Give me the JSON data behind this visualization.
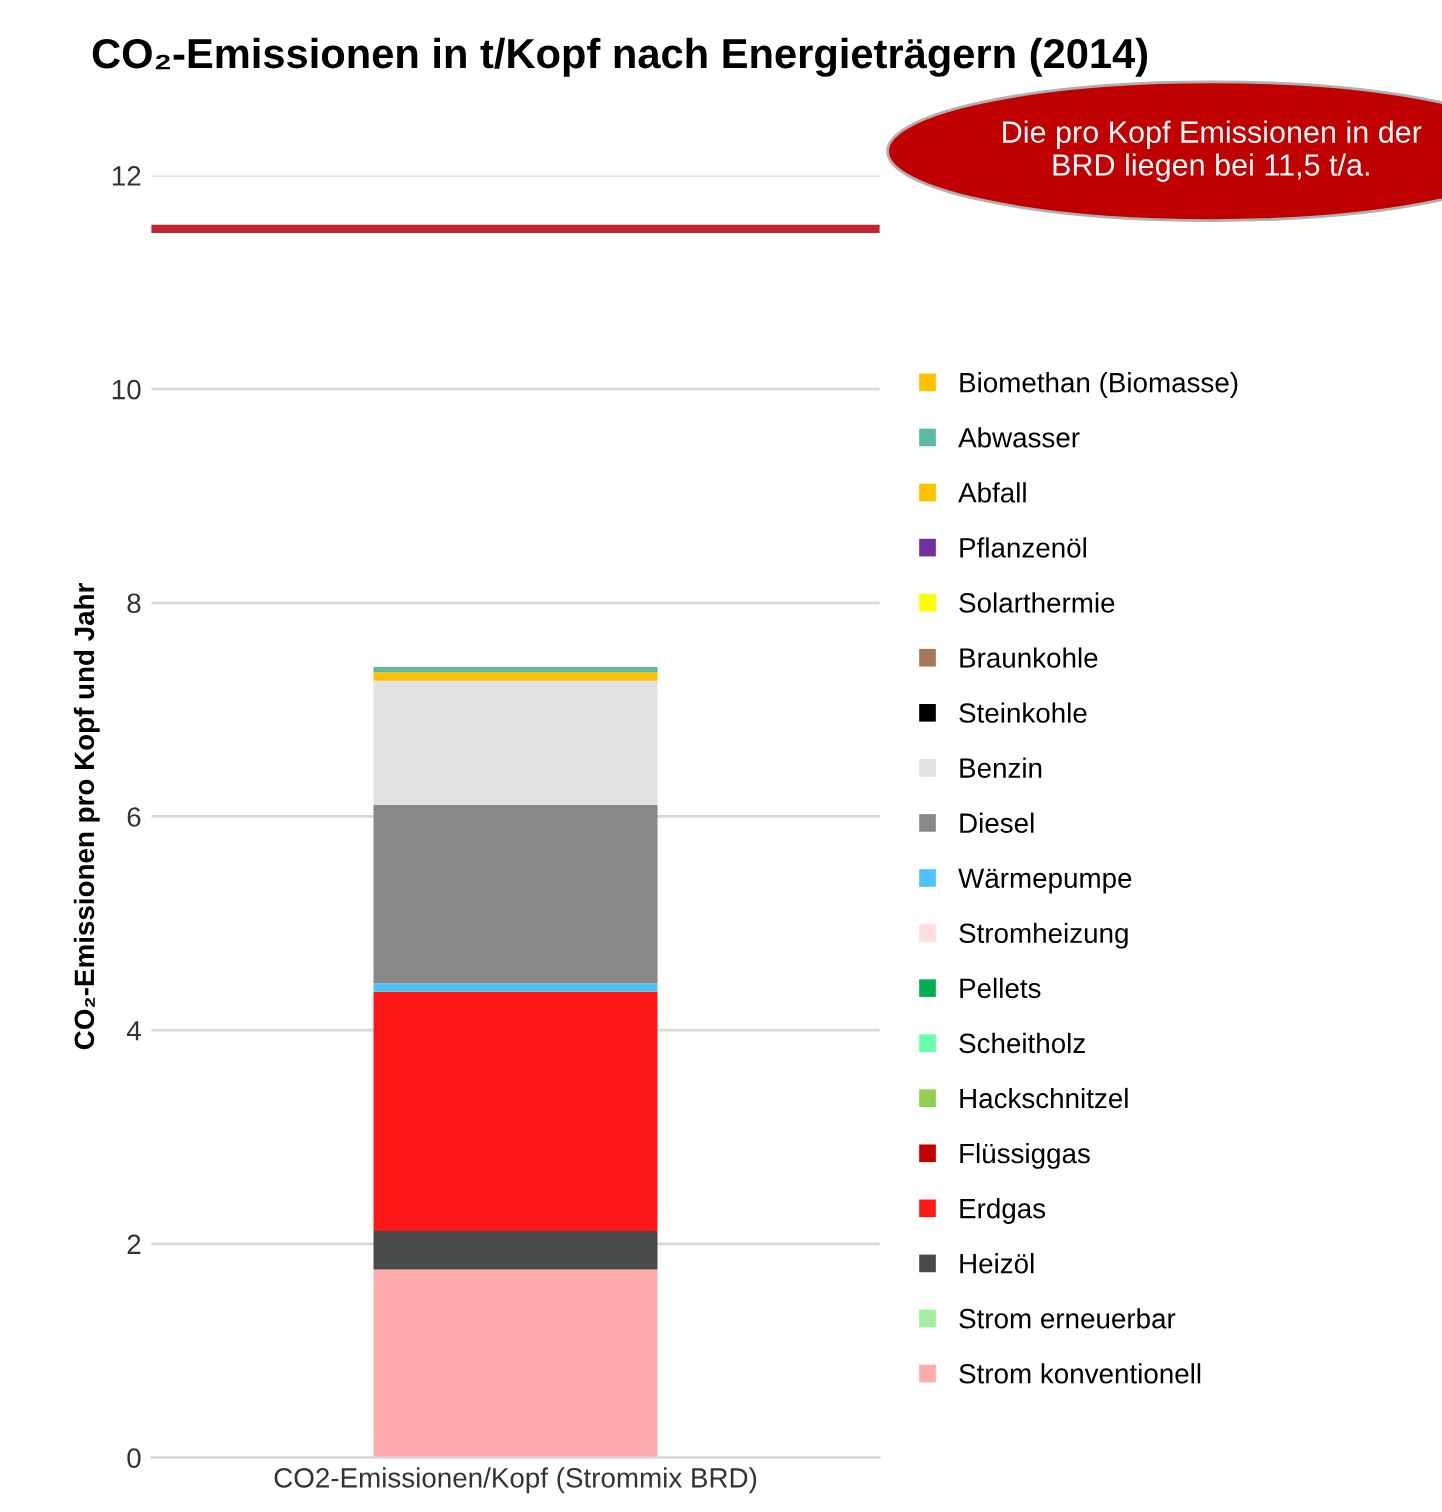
{
  "chart_data": {
    "type": "bar",
    "stacked": true,
    "title": "CO₂-Emissionen in t/Kopf nach Energieträgern (2014)",
    "ylabel": "CO₂-Emissionen pro Kopf und Jahr",
    "categories": [
      "CO2-Emissionen/Kopf (Strommix BRD)"
    ],
    "ylim": [
      0,
      12
    ],
    "yticks": [
      0,
      2,
      4,
      6,
      8,
      10,
      12
    ],
    "grid": "y",
    "legend": "right",
    "ref_lines": [
      {
        "axis": "y",
        "value": 11.5,
        "label": null,
        "color": "#c0262d"
      }
    ],
    "annotations": [
      "Die pro Kopf Emissionen in der BRD liegen bei 11,5 t/a."
    ],
    "series": [
      {
        "name": "Strom konventionell",
        "color": "#ffabae",
        "values": [
          1.76
        ]
      },
      {
        "name": "Strom erneuerbar",
        "color": "#a0f0a0",
        "values": [
          0
        ]
      },
      {
        "name": "Heizöl",
        "color": "#4a4a4a",
        "values": [
          0.36
        ]
      },
      {
        "name": "Erdgas",
        "color": "#ff1818",
        "values": [
          2.24
        ]
      },
      {
        "name": "Flüssiggas",
        "color": "#c00000",
        "values": [
          0
        ]
      },
      {
        "name": "Hackschnitzel",
        "color": "#92d050",
        "values": [
          0
        ]
      },
      {
        "name": "Scheitholz",
        "color": "#66ffaa",
        "values": [
          0
        ]
      },
      {
        "name": "Pellets",
        "color": "#00b050",
        "values": [
          0
        ]
      },
      {
        "name": "Stromheizung",
        "color": "#ffdde0",
        "values": [
          0
        ]
      },
      {
        "name": "Wärmepumpe",
        "color": "#4fc3f7",
        "values": [
          0.08
        ]
      },
      {
        "name": "Diesel",
        "color": "#888888",
        "values": [
          1.67
        ]
      },
      {
        "name": "Benzin",
        "color": "#e2e2e2",
        "values": [
          1.16
        ]
      },
      {
        "name": "Steinkohle",
        "color": "#000000",
        "values": [
          0
        ]
      },
      {
        "name": "Braunkohle",
        "color": "#a5785a",
        "values": [
          0
        ]
      },
      {
        "name": "Solarthermie",
        "color": "#ffff00",
        "values": [
          0
        ]
      },
      {
        "name": "Pflanzenöl",
        "color": "#7030a0",
        "values": [
          0
        ]
      },
      {
        "name": "Abfall",
        "color": "#ffc000",
        "values": [
          0.08
        ]
      },
      {
        "name": "Abwasser",
        "color": "#5cb8a0",
        "values": [
          0.05
        ]
      },
      {
        "name": "Biomethan (Biomasse)",
        "color": "#ffc000",
        "values": [
          0
        ]
      }
    ]
  }
}
